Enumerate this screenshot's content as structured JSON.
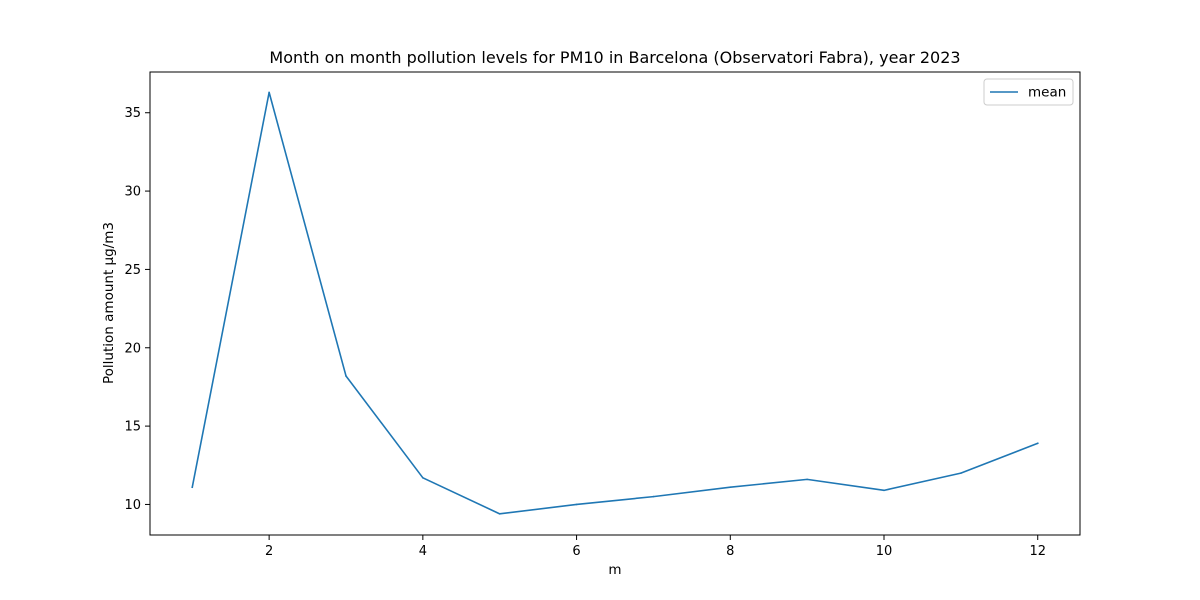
{
  "chart_data": {
    "type": "line",
    "title": "Month on month pollution levels for PM10 in Barcelona (Observatori Fabra), year 2023",
    "xlabel": "m",
    "ylabel": "Pollution amount µg/m3",
    "xlim": [
      0.45,
      12.55
    ],
    "ylim": [
      8.05,
      37.6
    ],
    "xticks": [
      2,
      4,
      6,
      8,
      10,
      12
    ],
    "yticks": [
      10,
      15,
      20,
      25,
      30,
      35
    ],
    "grid": false,
    "legend_position": "top-right",
    "series": [
      {
        "name": "mean",
        "color": "#1f77b4",
        "x": [
          1,
          2,
          3,
          4,
          5,
          6,
          7,
          8,
          9,
          10,
          11,
          12
        ],
        "y": [
          11.1,
          36.3,
          18.2,
          11.7,
          9.4,
          10.0,
          10.5,
          11.1,
          11.6,
          10.9,
          12.0,
          13.9
        ]
      }
    ]
  }
}
